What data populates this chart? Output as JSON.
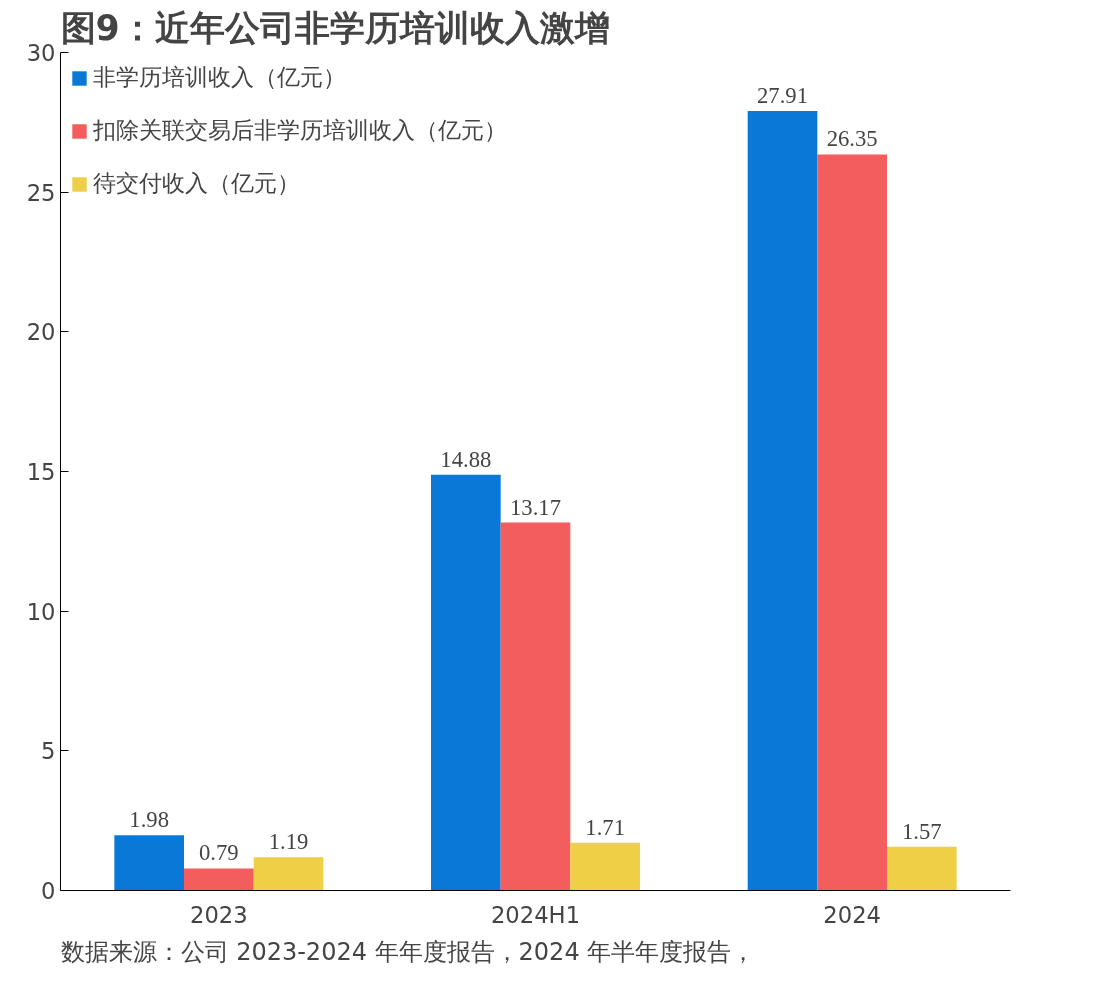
{
  "chart_data": {
    "type": "bar",
    "title": "图9：近年公司非学历培训收入激增",
    "categories": [
      "2023",
      "2024H1",
      "2024"
    ],
    "series": [
      {
        "name": "非学历培训收入（亿元）",
        "color": "#0a78d7",
        "values": [
          1.98,
          14.88,
          27.91
        ]
      },
      {
        "name": "扣除关联交易后非学历培训收入（亿元）",
        "color": "#f45d5d",
        "values": [
          0.79,
          13.17,
          26.35
        ]
      },
      {
        "name": "待交付收入（亿元）",
        "color": "#efcf45",
        "values": [
          1.19,
          1.71,
          1.57
        ]
      }
    ],
    "ylim": [
      0,
      30
    ],
    "yticks": [
      0,
      5,
      10,
      15,
      20,
      25,
      30
    ],
    "grid": false,
    "legend": "top left",
    "data_labels": true,
    "annotations": [
      "数据来源：公司 2023-2024 年年度报告，2024 年半年度报告，"
    ]
  }
}
